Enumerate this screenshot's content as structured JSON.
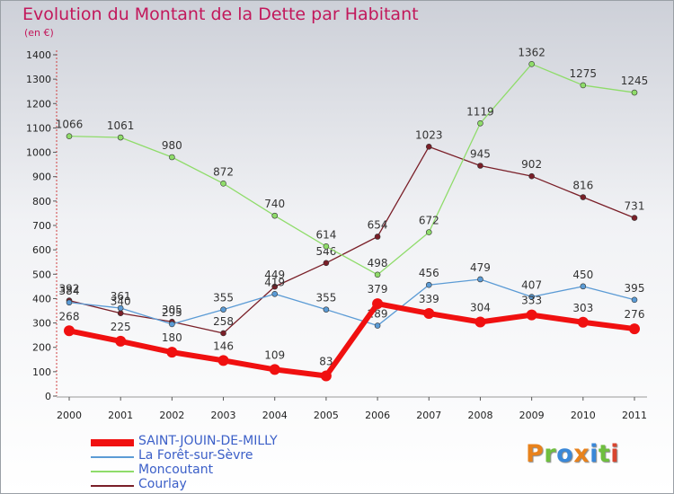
{
  "header": {
    "title": "Evolution du Montant de la Dette par Habitant",
    "unit": "(en €)"
  },
  "logo": {
    "text": "Proxiti",
    "colors": [
      "#e8821c",
      "#6fbf3f",
      "#3a88d8",
      "#e8821c",
      "#3a88d8",
      "#6fbf3f",
      "#d8452f"
    ]
  },
  "chart_data": {
    "type": "line",
    "title": "Evolution du Montant de la Dette par Habitant",
    "subtitle": "(en €)",
    "xlabel": "",
    "ylabel": "",
    "ylim": [
      0,
      1400
    ],
    "yticks": [
      0,
      100,
      200,
      300,
      400,
      500,
      600,
      700,
      800,
      900,
      1000,
      1100,
      1200,
      1300,
      1400
    ],
    "x": [
      "2000",
      "2001",
      "2002",
      "2003",
      "2004",
      "2005",
      "2006",
      "2007",
      "2008",
      "2009",
      "2010",
      "2011"
    ],
    "grid": false,
    "legend": "bottom-left",
    "series": [
      {
        "name": "Courlay",
        "color": "#7a1f28",
        "values": [
          392,
          340,
          305,
          258,
          449,
          546,
          654,
          1023,
          945,
          902,
          816,
          731
        ]
      },
      {
        "name": "Moncoutant",
        "color": "#8fdc6a",
        "values": [
          1066,
          1061,
          980,
          872,
          740,
          614,
          498,
          672,
          1119,
          1362,
          1275,
          1245
        ]
      },
      {
        "name": "La Forêt-sur-Sèvre",
        "color": "#5b9bd5",
        "values": [
          384,
          361,
          295,
          355,
          419,
          355,
          289,
          456,
          479,
          407,
          450,
          395
        ]
      },
      {
        "name": "SAINT-JOUIN-DE-MILLY",
        "color": "#f01010",
        "values": [
          268,
          225,
          180,
          146,
          109,
          83,
          379,
          339,
          304,
          333,
          303,
          276
        ]
      }
    ]
  }
}
